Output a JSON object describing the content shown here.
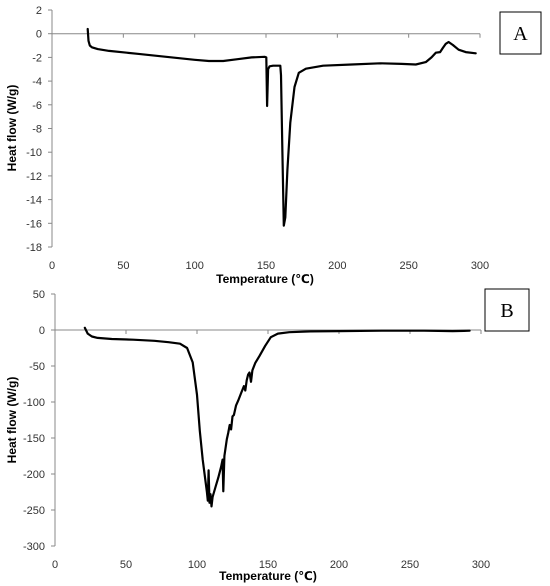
{
  "chart_data": [
    {
      "type": "line",
      "panel_label": "A",
      "xlabel": "Temperature (℃)",
      "ylabel": "Heat flow (W/g)",
      "xlim": [
        0,
        300
      ],
      "ylim": [
        -18,
        2
      ],
      "xticks": [
        0,
        50,
        100,
        150,
        200,
        250,
        300
      ],
      "yticks": [
        2,
        0,
        -2,
        -4,
        -6,
        -8,
        -10,
        -12,
        -14,
        -16,
        -18
      ],
      "grid": false,
      "series": [
        {
          "color": "#000000",
          "points": [
            [
              25,
              0.4
            ],
            [
              25.6,
              -0.6
            ],
            [
              26.5,
              -1.0
            ],
            [
              28,
              -1.15
            ],
            [
              32,
              -1.3
            ],
            [
              40,
              -1.45
            ],
            [
              60,
              -1.7
            ],
            [
              80,
              -1.95
            ],
            [
              100,
              -2.2
            ],
            [
              110,
              -2.3
            ],
            [
              120,
              -2.3
            ],
            [
              130,
              -2.15
            ],
            [
              140,
              -2.0
            ],
            [
              149,
              -1.95
            ],
            [
              150.2,
              -2.0
            ],
            [
              150.8,
              -6.1
            ],
            [
              151.5,
              -3.0
            ],
            [
              152.5,
              -2.75
            ],
            [
              155,
              -2.7
            ],
            [
              160,
              -2.7
            ],
            [
              160.5,
              -3.5
            ],
            [
              161.5,
              -10.0
            ],
            [
              162.5,
              -16.2
            ],
            [
              163.5,
              -15.5
            ],
            [
              165,
              -11.5
            ],
            [
              167,
              -7.5
            ],
            [
              170,
              -4.5
            ],
            [
              173,
              -3.3
            ],
            [
              178,
              -2.95
            ],
            [
              190,
              -2.7
            ],
            [
              210,
              -2.6
            ],
            [
              230,
              -2.5
            ],
            [
              245,
              -2.55
            ],
            [
              255,
              -2.6
            ],
            [
              262,
              -2.4
            ],
            [
              266,
              -2.0
            ],
            [
              269,
              -1.6
            ],
            [
              272,
              -1.55
            ],
            [
              274,
              -1.2
            ],
            [
              276,
              -0.85
            ],
            [
              278,
              -0.7
            ],
            [
              281,
              -0.95
            ],
            [
              285,
              -1.35
            ],
            [
              290,
              -1.55
            ],
            [
              297,
              -1.65
            ]
          ]
        }
      ]
    },
    {
      "type": "line",
      "panel_label": "B",
      "xlabel": "Temperature (℃)",
      "ylabel": "Heat flow (W/g)",
      "xlim": [
        0,
        300
      ],
      "ylim": [
        -300,
        50
      ],
      "xticks": [
        0,
        50,
        100,
        150,
        200,
        250,
        300
      ],
      "yticks": [
        50,
        0,
        -50,
        -100,
        -150,
        -200,
        -250,
        -300
      ],
      "grid": false,
      "series": [
        {
          "color": "#000000",
          "points": [
            [
              21,
              3
            ],
            [
              23,
              -5
            ],
            [
              26,
              -9
            ],
            [
              30,
              -11
            ],
            [
              40,
              -12.5
            ],
            [
              55,
              -13.5
            ],
            [
              70,
              -15
            ],
            [
              80,
              -17
            ],
            [
              88,
              -19
            ],
            [
              93,
              -25
            ],
            [
              97,
              -45
            ],
            [
              100,
              -90
            ],
            [
              102,
              -140
            ],
            [
              104,
              -180
            ],
            [
              106,
              -210
            ],
            [
              107,
              -225
            ],
            [
              107.6,
              -237
            ],
            [
              108.2,
              -195
            ],
            [
              108.8,
              -240
            ],
            [
              109.5,
              -228
            ],
            [
              110.2,
              -245
            ],
            [
              111,
              -232
            ],
            [
              113,
              -218
            ],
            [
              115,
              -205
            ],
            [
              117,
              -190
            ],
            [
              118,
              -180
            ],
            [
              118.5,
              -224
            ],
            [
              119.3,
              -175
            ],
            [
              121,
              -152
            ],
            [
              122,
              -143
            ],
            [
              123,
              -132
            ],
            [
              124,
              -138
            ],
            [
              125,
              -120
            ],
            [
              126,
              -118
            ],
            [
              127.5,
              -105
            ],
            [
              129,
              -98
            ],
            [
              131,
              -88
            ],
            [
              133,
              -78
            ],
            [
              134,
              -84
            ],
            [
              135,
              -70
            ],
            [
              136,
              -62
            ],
            [
              137,
              -59
            ],
            [
              138,
              -72
            ],
            [
              139,
              -56
            ],
            [
              141,
              -46
            ],
            [
              144,
              -36
            ],
            [
              148,
              -22
            ],
            [
              152,
              -10
            ],
            [
              157,
              -5
            ],
            [
              165,
              -3
            ],
            [
              180,
              -2
            ],
            [
              200,
              -1.5
            ],
            [
              230,
              -1
            ],
            [
              260,
              -1
            ],
            [
              280,
              -1.5
            ],
            [
              288,
              -1.2
            ],
            [
              292,
              -1
            ]
          ]
        }
      ]
    }
  ]
}
